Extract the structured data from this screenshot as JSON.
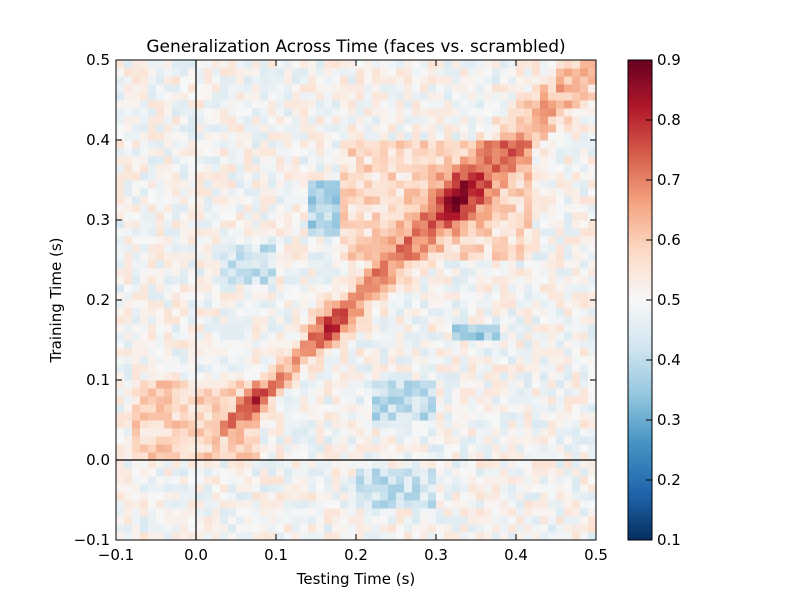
{
  "chart_data": {
    "type": "heatmap",
    "title": "Generalization Across Time (faces vs. scrambled)",
    "xlabel": "Testing Time (s)",
    "ylabel": "Training Time (s)",
    "xlim": [
      -0.1,
      0.5
    ],
    "ylim": [
      -0.1,
      0.5
    ],
    "xticks": [
      "−0.1",
      "0.0",
      "0.1",
      "0.2",
      "0.3",
      "0.4",
      "0.5"
    ],
    "yticks": [
      "−0.1",
      "0.0",
      "0.1",
      "0.2",
      "0.3",
      "0.4",
      "0.5"
    ],
    "colorbar": {
      "min": 0.1,
      "max": 0.9,
      "ticks": [
        "0.1",
        "0.2",
        "0.3",
        "0.4",
        "0.5",
        "0.6",
        "0.7",
        "0.8",
        "0.9"
      ],
      "colormap": "RdBu_r",
      "stops": [
        "#053061",
        "#2166ac",
        "#4393c3",
        "#92c5de",
        "#d1e5f0",
        "#f7f7f7",
        "#fddbc7",
        "#f4a582",
        "#d6604d",
        "#b2182b",
        "#67001f"
      ]
    },
    "reference_lines": {
      "x": 0.0,
      "y": 0.0
    },
    "grid_resolution": 60,
    "pattern": {
      "background": 0.5,
      "diagonal_peaks": [
        {
          "t": 0.08,
          "value": 0.75
        },
        {
          "t": 0.17,
          "value": 0.8
        },
        {
          "t": 0.23,
          "value": 0.72
        },
        {
          "t": 0.33,
          "value": 0.8
        },
        {
          "t": 0.38,
          "value": 0.68
        }
      ],
      "regions": [
        {
          "test": [
            -0.08,
            0.08
          ],
          "train": [
            0.0,
            0.1
          ],
          "value": 0.62
        },
        {
          "test": [
            0.18,
            0.42
          ],
          "train": [
            0.25,
            0.4
          ],
          "value": 0.6
        },
        {
          "test": [
            0.14,
            0.18
          ],
          "train": [
            0.28,
            0.35
          ],
          "value": 0.32
        },
        {
          "test": [
            0.03,
            0.1
          ],
          "train": [
            0.22,
            0.27
          ],
          "value": 0.38
        },
        {
          "test": [
            0.22,
            0.3
          ],
          "train": [
            0.05,
            0.1
          ],
          "value": 0.36
        },
        {
          "test": [
            0.2,
            0.3
          ],
          "train": [
            -0.06,
            -0.01
          ],
          "value": 0.38
        },
        {
          "test": [
            0.32,
            0.38
          ],
          "train": [
            0.155,
            0.165
          ],
          "value": 0.3
        }
      ]
    }
  }
}
